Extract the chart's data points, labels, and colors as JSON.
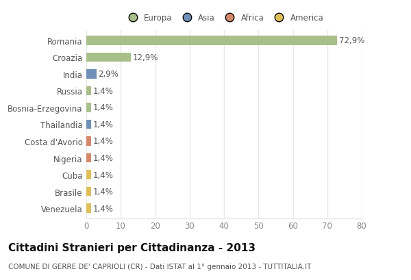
{
  "countries": [
    "Romania",
    "Croazia",
    "India",
    "Russia",
    "Bosnia-Erzegovina",
    "Thailandia",
    "Costa d'Avorio",
    "Nigeria",
    "Cuba",
    "Brasile",
    "Venezuela"
  ],
  "values": [
    72.9,
    12.9,
    2.9,
    1.4,
    1.4,
    1.4,
    1.4,
    1.4,
    1.4,
    1.4,
    1.4
  ],
  "labels": [
    "72,9%",
    "12,9%",
    "2,9%",
    "1,4%",
    "1,4%",
    "1,4%",
    "1,4%",
    "1,4%",
    "1,4%",
    "1,4%",
    "1,4%"
  ],
  "colors": [
    "#a8bf8a",
    "#a8bf8a",
    "#7090b8",
    "#a8bf8a",
    "#a8bf8a",
    "#7090b8",
    "#d4886a",
    "#d4886a",
    "#e0bf5a",
    "#e0bf5a",
    "#e0bf5a"
  ],
  "legend_labels": [
    "Europa",
    "Asia",
    "Africa",
    "America"
  ],
  "legend_colors": [
    "#a8bf8a",
    "#7090b8",
    "#d4886a",
    "#e0bf5a"
  ],
  "xlim": [
    0,
    80
  ],
  "xticks": [
    0,
    10,
    20,
    30,
    40,
    50,
    60,
    70,
    80
  ],
  "title": "Cittadini Stranieri per Cittadinanza - 2013",
  "subtitle": "COMUNE DI GERRE DE' CAPRIOLI (CR) - Dati ISTAT al 1° gennaio 2013 - TUTTITALIA.IT",
  "bg_color": "#ffffff",
  "plot_bg_color": "#ffffff",
  "bar_height": 0.55,
  "grid_color": "#e8e8e8",
  "label_fontsize": 8.5,
  "title_fontsize": 11,
  "subtitle_fontsize": 7.5,
  "ytick_fontsize": 8.5,
  "xtick_fontsize": 8.5
}
